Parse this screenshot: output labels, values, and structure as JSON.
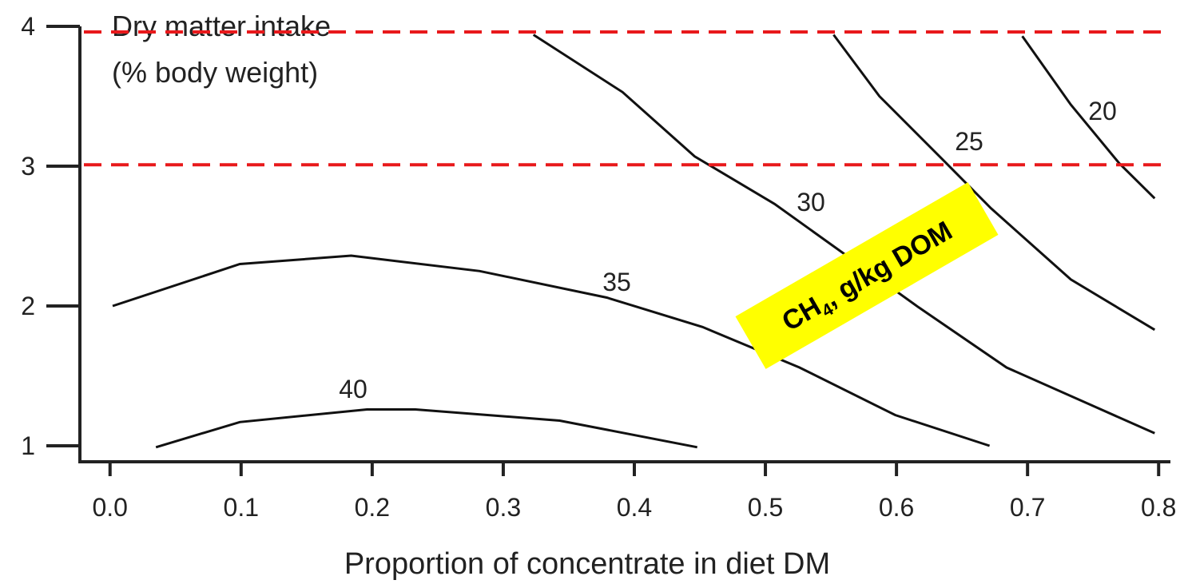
{
  "chart_data": {
    "type": "line",
    "ylabel": [
      "Dry matter intake",
      "(% body weight)"
    ],
    "xlabel": "Proportion of concentrate in diet DM",
    "xlim": [
      -0.023,
      0.809
    ],
    "ylim": [
      0.886,
      4.0
    ],
    "xticks": [
      {
        "value": 0,
        "label": "0.0"
      },
      0.1,
      0.2,
      0.3,
      0.4,
      0.5,
      0.6,
      0.7,
      0.8
    ],
    "yticks": [
      1,
      2,
      3,
      4
    ],
    "series": [
      {
        "name": "20",
        "color": "#111111",
        "x": [
          0.696,
          0.733,
          0.77,
          0.797
        ],
        "values": [
          3.93,
          3.44,
          3.02,
          2.77
        ]
      },
      {
        "name": "25",
        "color": "#111111",
        "x": [
          0.552,
          0.587,
          0.635,
          0.672,
          0.733,
          0.797
        ],
        "values": [
          3.94,
          3.5,
          3.05,
          2.7,
          2.19,
          1.83
        ]
      },
      {
        "name": "30",
        "color": "#111111",
        "x": [
          0.323,
          0.391,
          0.446,
          0.507,
          0.562,
          0.617,
          0.684,
          0.797
        ],
        "values": [
          3.94,
          3.53,
          3.07,
          2.73,
          2.36,
          1.99,
          1.56,
          1.09
        ]
      },
      {
        "name": "35",
        "color": "#111111",
        "x": [
          0.002,
          0.099,
          0.184,
          0.282,
          0.379,
          0.452,
          0.526,
          0.599,
          0.671
        ],
        "values": [
          2.0,
          2.3,
          2.36,
          2.25,
          2.06,
          1.85,
          1.56,
          1.22,
          1.0
        ]
      },
      {
        "name": "40",
        "color": "#111111",
        "x": [
          0.035,
          0.099,
          0.196,
          0.233,
          0.343,
          0.448
        ],
        "values": [
          0.99,
          1.17,
          1.26,
          1.26,
          1.18,
          0.99
        ]
      }
    ],
    "reference_lines": {
      "color": "#e8191b",
      "values": [
        3.96,
        3.01
      ]
    },
    "annotation": {
      "parts": [
        "CH",
        "4",
        ", g/kg DOM"
      ],
      "color": "#ffff00"
    }
  }
}
